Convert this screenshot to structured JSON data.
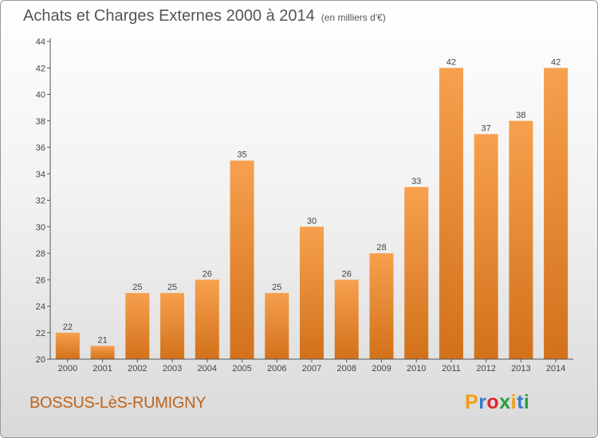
{
  "title": "Achats et Charges Externes 2000 à 2014",
  "title_unit": "(en milliers d'€)",
  "commune": "BOSSUS-LèS-RUMIGNY",
  "logo": {
    "letters": [
      "P",
      "r",
      "o",
      "x",
      "i",
      "t",
      "i"
    ],
    "colors": [
      "#f39c12",
      "#3a78c9",
      "#e2242c",
      "#2a9d3a",
      "#f39c12",
      "#3a78c9",
      "#2a9d3a"
    ]
  },
  "colors": {
    "bar_light": "#f7a04e",
    "bar_dark": "#d2711a",
    "accent": "#c0631a"
  },
  "chart_data": {
    "type": "bar",
    "categories": [
      "2000",
      "2001",
      "2002",
      "2003",
      "2004",
      "2005",
      "2006",
      "2007",
      "2008",
      "2009",
      "2010",
      "2011",
      "2012",
      "2013",
      "2014"
    ],
    "values": [
      22,
      21,
      25,
      25,
      26,
      35,
      25,
      30,
      26,
      28,
      33,
      42,
      37,
      38,
      42
    ],
    "ylim": [
      20,
      44
    ],
    "yticks": [
      20,
      22,
      24,
      26,
      28,
      30,
      32,
      34,
      36,
      38,
      40,
      42,
      44
    ],
    "grid": false,
    "data_labels": true
  }
}
